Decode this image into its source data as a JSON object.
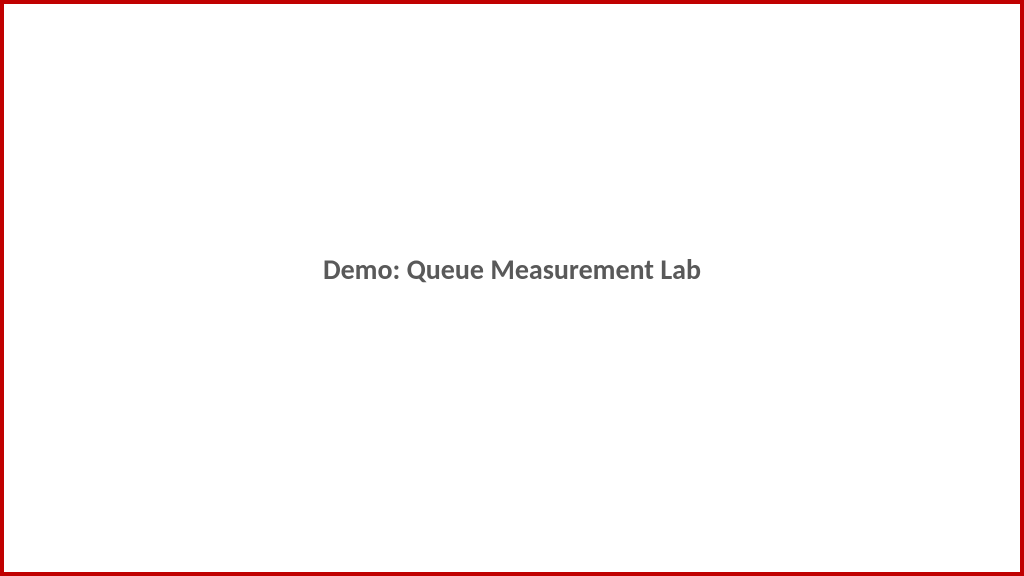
{
  "slide": {
    "title": "Demo: Queue Measurement Lab",
    "border_color": "#c00000",
    "border_width": 4,
    "background_color": "#ffffff",
    "title_color": "#595959",
    "title_fontsize": 28,
    "title_fontweight": "bold"
  }
}
